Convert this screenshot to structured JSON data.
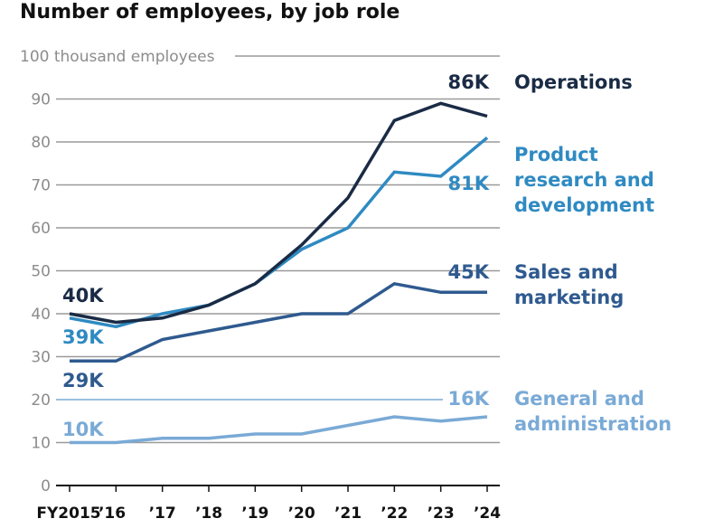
{
  "chart_data": {
    "type": "line",
    "title": "Number of employees, by job role",
    "ylabel": "100 thousand employees",
    "xlabel": "",
    "ylim": [
      0,
      100
    ],
    "yticks": [
      0,
      10,
      20,
      30,
      40,
      50,
      60,
      70,
      80,
      90,
      100
    ],
    "ytick_labels": [
      "0",
      "10",
      "20",
      "30",
      "40",
      "50",
      "60",
      "70",
      "80",
      "90",
      "100 thousand employees"
    ],
    "grid": true,
    "legend": "right (direct labels)",
    "categories": [
      "FY2015",
      "’16",
      "’17",
      "’18",
      "’19",
      "’20",
      "’21",
      "’22",
      "’23",
      "’24"
    ],
    "series": [
      {
        "name": "Operations",
        "legend_lines": [
          "Operations"
        ],
        "color": "#1a2b45",
        "values": [
          40,
          38,
          39,
          42,
          47,
          56,
          67,
          85,
          89,
          86
        ],
        "start_label": "40K",
        "end_label": "86K"
      },
      {
        "name": "Product research and development",
        "legend_lines": [
          "Product",
          "research and",
          "development"
        ],
        "color": "#2f8ac2",
        "values": [
          39,
          37,
          40,
          42,
          47,
          55,
          60,
          73,
          72,
          81
        ],
        "start_label": "39K",
        "end_label": "81K"
      },
      {
        "name": "Sales and marketing",
        "legend_lines": [
          "Sales and",
          "marketing"
        ],
        "color": "#2f5a8f",
        "values": [
          29,
          29,
          34,
          36,
          38,
          40,
          40,
          47,
          45,
          45
        ],
        "start_label": "29K",
        "end_label": "45K"
      },
      {
        "name": "General and administration",
        "legend_lines": [
          "General and",
          "administration"
        ],
        "color": "#7aaad6",
        "values": [
          10,
          10,
          11,
          11,
          12,
          12,
          14,
          16,
          15,
          16
        ],
        "start_label": "10K",
        "end_label": "16K"
      }
    ]
  }
}
